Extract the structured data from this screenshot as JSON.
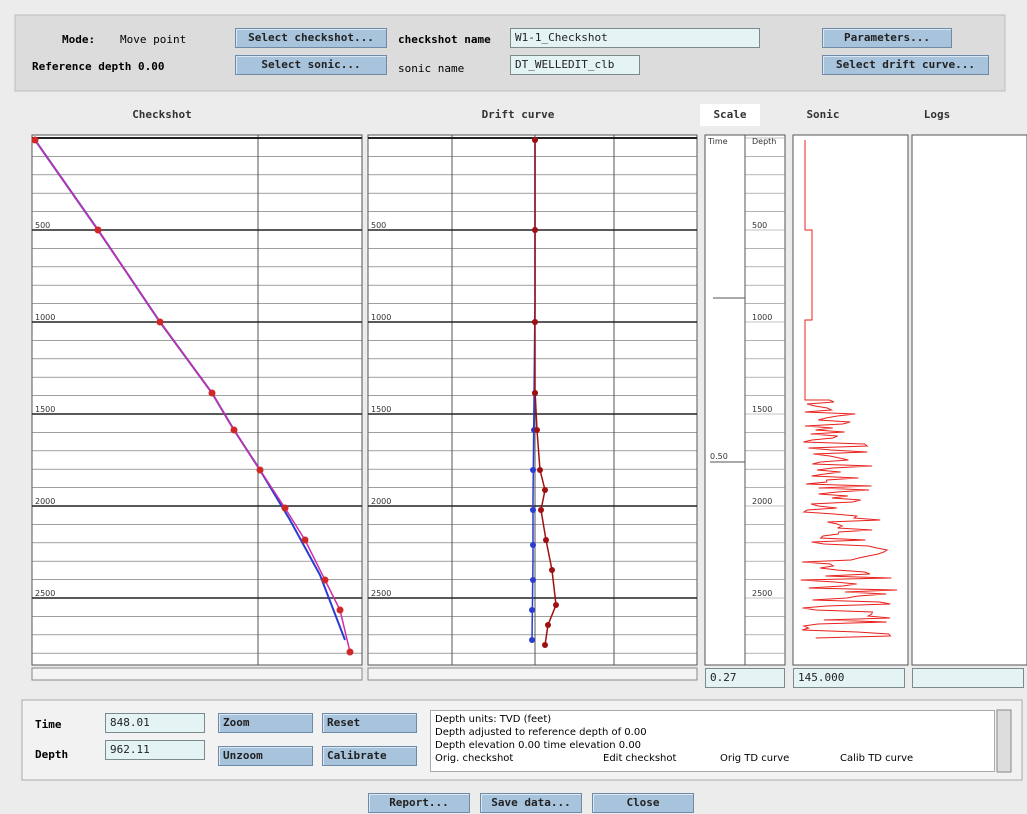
{
  "toolbar": {
    "mode_label": "Mode:",
    "mode_value": "Move point",
    "reference_depth": "Reference depth 0.00",
    "select_checkshot": "Select checkshot...",
    "select_sonic": "Select sonic...",
    "checkshot_name_label": "checkshot name",
    "checkshot_name": "W1-1_Checkshot",
    "sonic_name_label": "sonic name",
    "sonic_name": "DT_WELLEDIT_clb",
    "parameters": "Parameters...",
    "select_drift_curve": "Select drift curve..."
  },
  "panels": {
    "checkshot": "Checkshot",
    "drift_curve": "Drift curve",
    "scale": "Scale",
    "sonic": "Sonic",
    "logs": "Logs"
  },
  "depth_ticks": [
    "500",
    "1000",
    "1500",
    "2000",
    "2500"
  ],
  "scale": {
    "time_header": "Time",
    "depth_header": "Depth",
    "time_tick": "0.50"
  },
  "readouts": {
    "scale": "0.27",
    "sonic": "145.000"
  },
  "cursor": {
    "time_label": "Time",
    "time": "848.01",
    "depth_label": "Depth",
    "depth": "962.11"
  },
  "buttons": {
    "zoom": "Zoom",
    "unzoom": "Unzoom",
    "reset": "Reset",
    "calibrate": "Calibrate"
  },
  "info": {
    "lines": [
      "Depth units: TVD (feet)",
      "Depth adjusted to reference depth of 0.00",
      "Depth elevation 0.00  time elevation 0.00"
    ],
    "legend": [
      "Orig. checkshot",
      "Edit checkshot",
      "Orig TD curve",
      "Calib TD curve"
    ]
  },
  "actions": [
    "Report...",
    "Save data...",
    "Close"
  ]
}
